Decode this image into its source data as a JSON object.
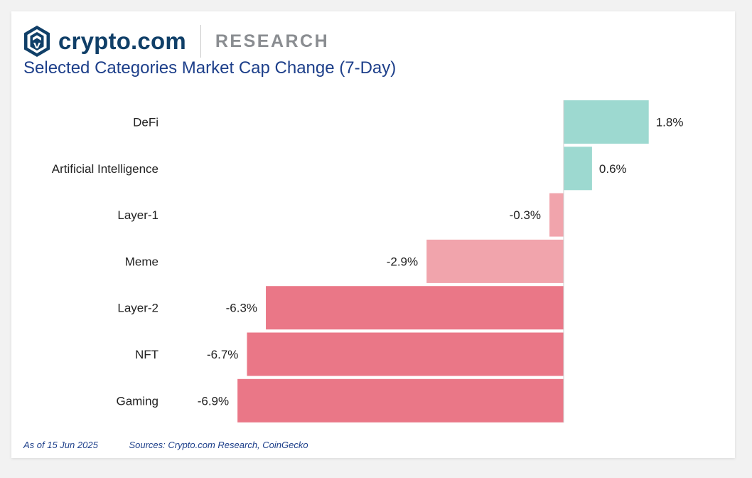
{
  "brand": {
    "name": "crypto.com",
    "tag": "RESEARCH"
  },
  "colors": {
    "positive": "#9dd9d0",
    "light_negative": "#f1a4ac",
    "negative": "#ea7787",
    "brand_navy": "#103f68",
    "title_blue": "#1d3f8a"
  },
  "footer": {
    "date": "As of 15 Jun 2025",
    "sources": "Sources: Crypto.com Research, CoinGecko"
  },
  "chart_data": {
    "type": "bar",
    "orientation": "horizontal",
    "title": "Selected Categories Market Cap Change (7-Day)",
    "categories": [
      "DeFi",
      "Artificial Intelligence",
      "Layer-1",
      "Meme",
      "Layer-2",
      "NFT",
      "Gaming"
    ],
    "values": [
      1.8,
      0.6,
      -0.3,
      -2.9,
      -6.3,
      -6.7,
      -6.9
    ],
    "value_labels": [
      "1.8%",
      "0.6%",
      "-0.3%",
      "-2.9%",
      "-6.3%",
      "-6.7%",
      "-6.9%"
    ],
    "unit": "%",
    "xlim": [
      -7.0,
      2.0
    ],
    "grid": false,
    "legend": "none"
  }
}
